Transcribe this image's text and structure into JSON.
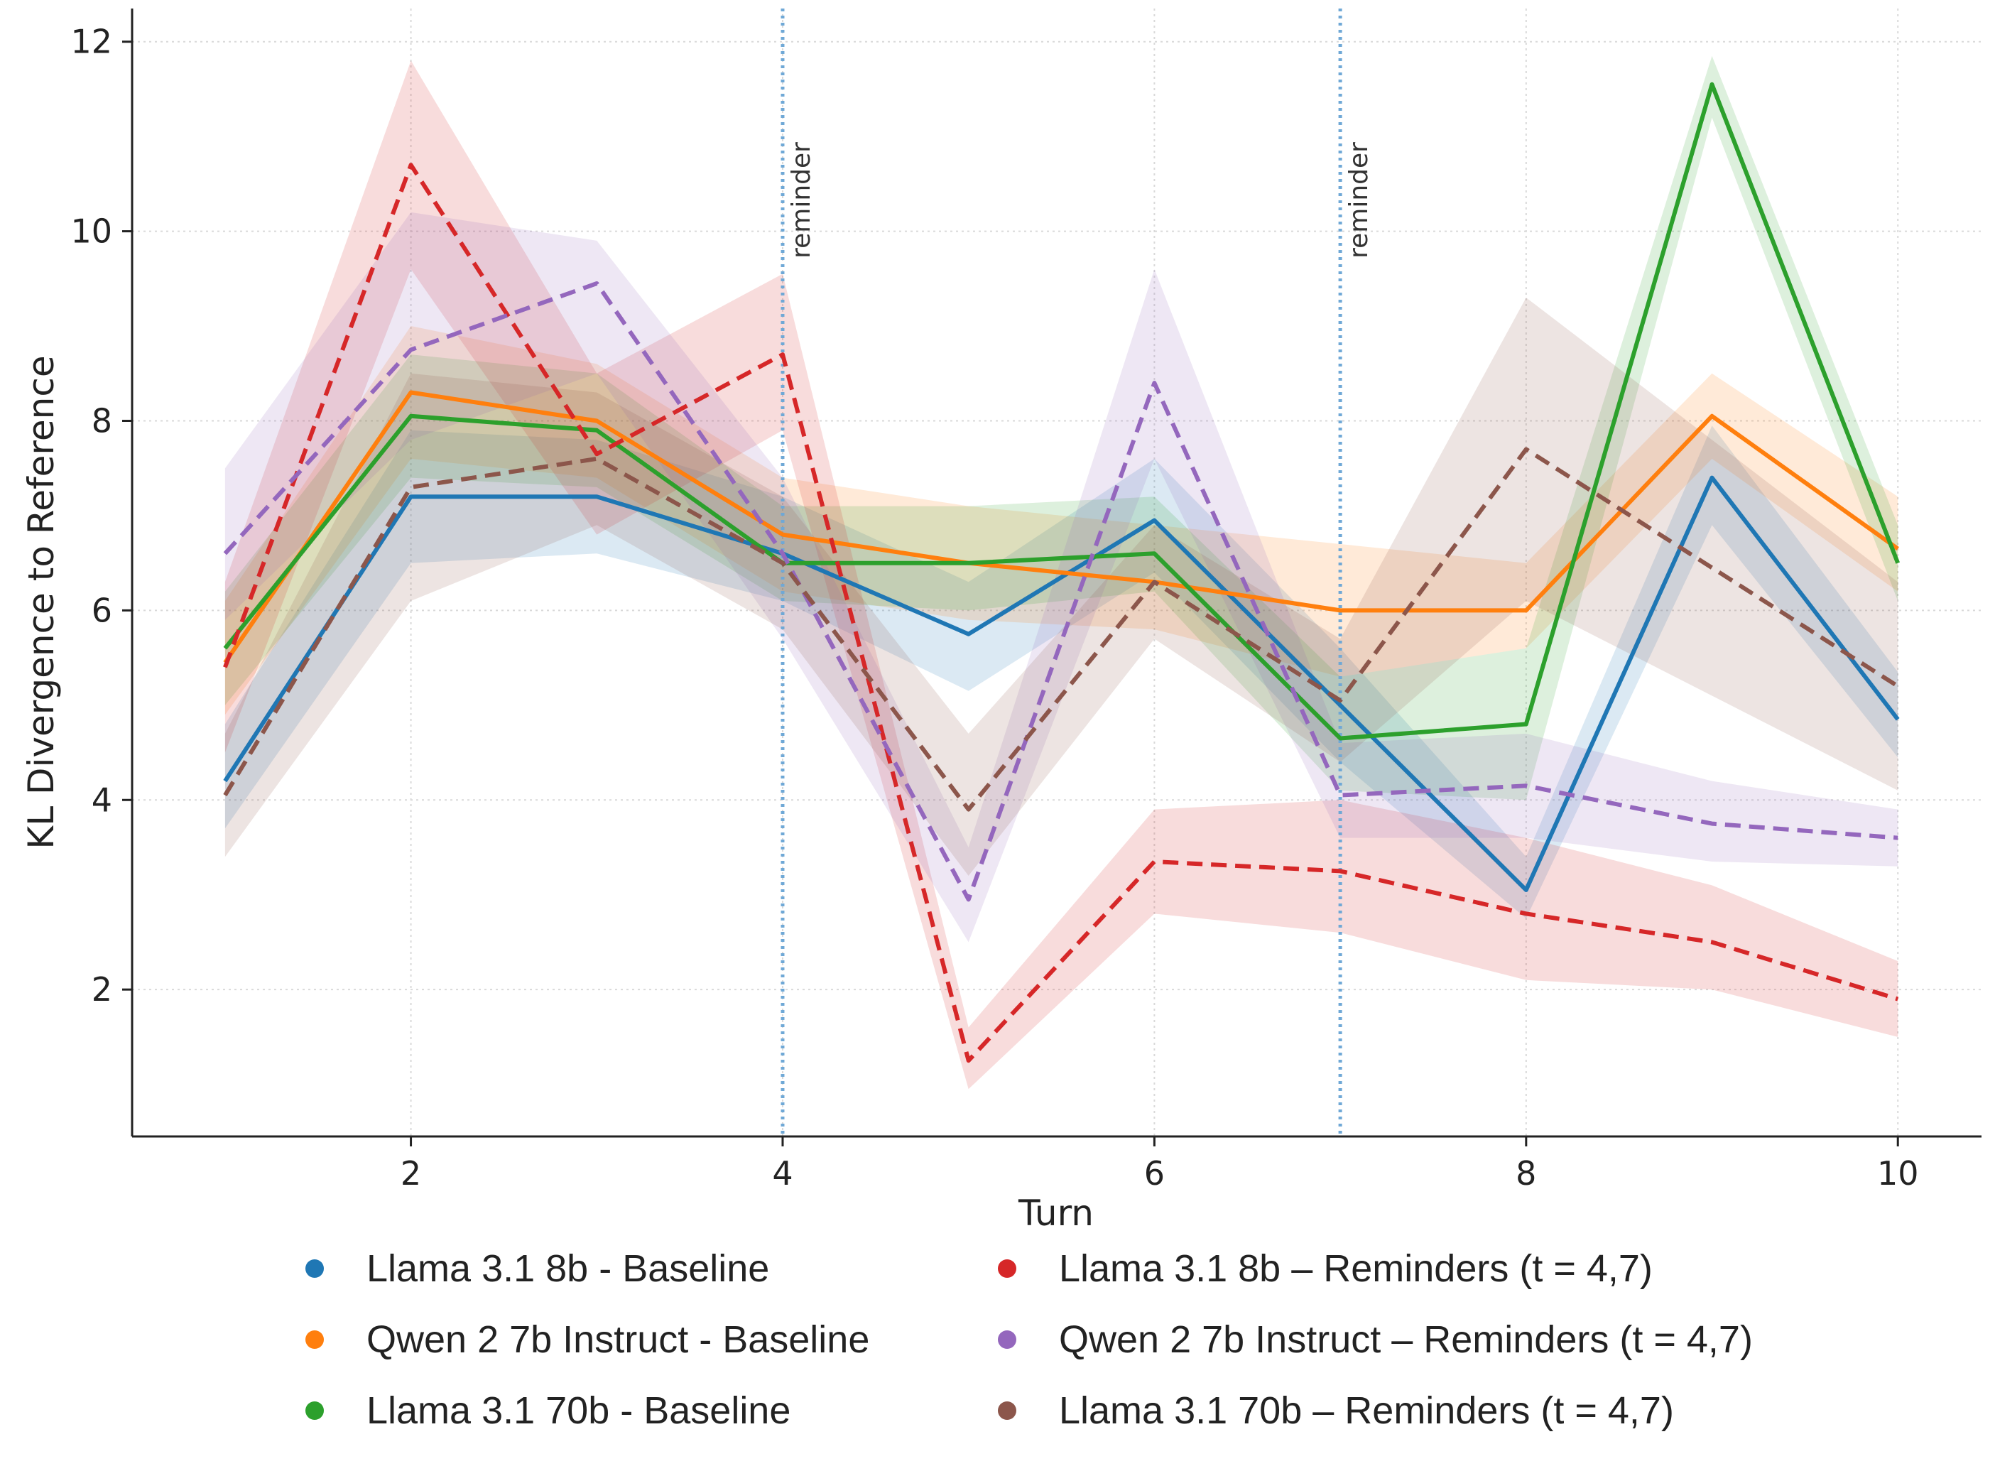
{
  "chart_data": {
    "type": "line",
    "title": "",
    "xlabel": "Turn",
    "ylabel": "KL Divergence to Reference",
    "xlim": [
      0.5,
      10.45
    ],
    "ylim": [
      0.45,
      12.35
    ],
    "xticks": [
      2,
      4,
      6,
      8,
      10
    ],
    "yticks": [
      2,
      4,
      6,
      8,
      10,
      12
    ],
    "xtick_labels": [
      "2",
      "4",
      "6",
      "8",
      "10"
    ],
    "ytick_labels": [
      "2",
      "4",
      "6",
      "8",
      "10",
      "12"
    ],
    "grid": true,
    "x": [
      1,
      2,
      3,
      4,
      5,
      6,
      7,
      8,
      9,
      10
    ],
    "annotations": [
      {
        "x": 4,
        "text": "reminder"
      },
      {
        "x": 7,
        "text": "reminder"
      }
    ],
    "legend_position": "bottom",
    "series": [
      {
        "name": "Llama 3.1 8b - Baseline",
        "color": "#1f77b4",
        "style": "solid",
        "values": [
          4.2,
          7.2,
          7.2,
          6.6,
          5.75,
          6.95,
          5.0,
          3.05,
          7.4,
          4.85
        ],
        "lower": [
          3.7,
          6.5,
          6.6,
          6.1,
          5.15,
          6.4,
          4.4,
          2.75,
          6.9,
          4.45
        ],
        "upper": [
          4.8,
          7.9,
          7.8,
          7.2,
          6.3,
          7.6,
          5.6,
          3.4,
          7.95,
          5.35
        ]
      },
      {
        "name": "Qwen 2 7b Instruct - Baseline",
        "color": "#ff7f0e",
        "style": "solid",
        "values": [
          5.45,
          8.3,
          8.0,
          6.8,
          6.5,
          6.3,
          6.0,
          6.0,
          8.05,
          6.65
        ],
        "lower": [
          4.9,
          7.6,
          7.4,
          6.2,
          5.9,
          5.8,
          5.3,
          5.6,
          7.6,
          6.2
        ],
        "upper": [
          6.1,
          9.0,
          8.6,
          7.4,
          7.1,
          6.9,
          6.7,
          6.5,
          8.5,
          7.2
        ]
      },
      {
        "name": "Llama 3.1 70b - Baseline",
        "color": "#2ca02c",
        "style": "solid",
        "values": [
          5.6,
          8.05,
          7.9,
          6.5,
          6.5,
          6.6,
          4.65,
          4.8,
          11.55,
          6.5
        ],
        "lower": [
          5.0,
          7.4,
          7.3,
          6.1,
          6.0,
          6.2,
          4.1,
          4.0,
          11.2,
          6.1
        ],
        "upper": [
          6.2,
          8.7,
          8.5,
          7.1,
          7.1,
          7.2,
          5.3,
          5.6,
          11.85,
          6.9
        ]
      },
      {
        "name": "Llama 3.1 8b – Reminders (t = 4,7)",
        "color": "#d62728",
        "style": "dashed",
        "values": [
          5.4,
          10.7,
          7.65,
          8.7,
          1.25,
          3.35,
          3.25,
          2.8,
          2.5,
          1.9
        ],
        "lower": [
          4.5,
          9.6,
          6.8,
          7.9,
          0.95,
          2.8,
          2.6,
          2.1,
          2.0,
          1.5
        ],
        "upper": [
          6.3,
          11.8,
          8.5,
          9.55,
          1.6,
          3.9,
          4.0,
          3.6,
          3.1,
          2.3
        ]
      },
      {
        "name": "Qwen 2 7b Instruct – Reminders (t = 4,7)",
        "color": "#9467bd",
        "style": "dashed",
        "values": [
          6.6,
          8.75,
          9.45,
          6.6,
          2.95,
          8.4,
          4.05,
          4.15,
          3.75,
          3.6
        ],
        "lower": [
          5.9,
          7.8,
          8.5,
          5.7,
          2.5,
          7.6,
          3.6,
          3.6,
          3.35,
          3.3
        ],
        "upper": [
          7.5,
          10.2,
          9.9,
          7.4,
          3.5,
          9.6,
          4.6,
          4.7,
          4.2,
          3.9
        ]
      },
      {
        "name": "Llama 3.1 70b – Reminders (t = 4,7)",
        "color": "#8c564b",
        "style": "dashed",
        "values": [
          4.05,
          7.3,
          7.6,
          6.5,
          3.9,
          6.3,
          5.05,
          7.7,
          6.45,
          5.2
        ],
        "lower": [
          3.4,
          6.1,
          6.9,
          5.8,
          3.2,
          5.7,
          4.4,
          6.1,
          5.1,
          4.1
        ],
        "upper": [
          4.7,
          8.5,
          8.3,
          7.2,
          4.7,
          6.9,
          5.7,
          9.3,
          7.8,
          6.3
        ]
      }
    ]
  }
}
